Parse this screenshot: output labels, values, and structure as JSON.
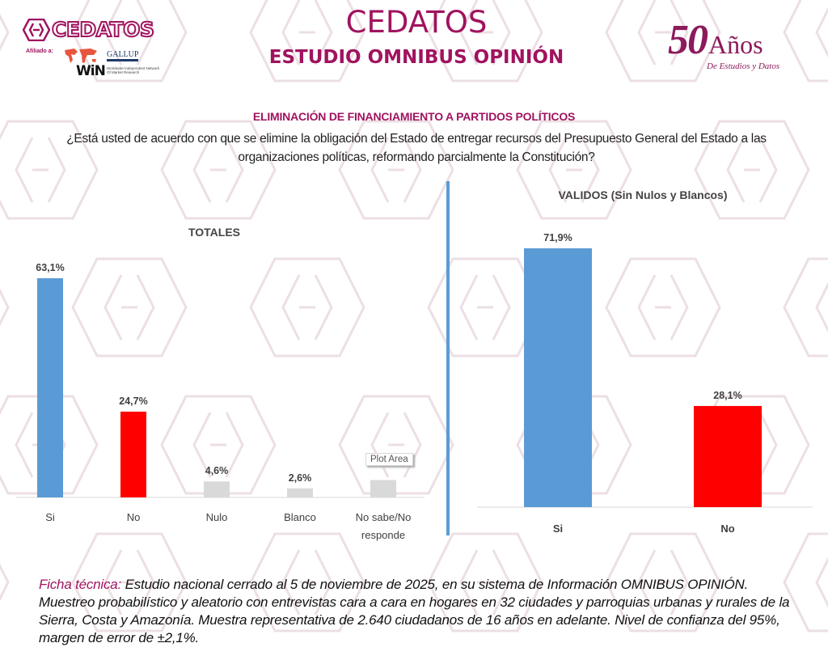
{
  "header": {
    "logo_text": "CEDATOS",
    "affiliated_label": "Afiliado a:",
    "gallup_text": "GALLUP",
    "win_text": "WiN",
    "win_subtext": "Worldwide Independent Network Of Market Research",
    "title": "CEDATOS",
    "subtitle": "ESTUDIO OMNIBUS OPINIÓN",
    "anniversary_number": "50",
    "anniversary_word": "Años",
    "anniversary_sub": "De Estudios y Datos"
  },
  "question": {
    "title": "ELIMINACIÓN DE FINANCIAMIENTO A PARTIDOS POLÍTICOS",
    "line1": "¿Está usted de acuerdo con que se elimine la obligación del Estado de entregar recursos del Presupuesto General del Estado a las",
    "line2": "organizaciones políticas, reformando parcialmente la Constitución?"
  },
  "colors": {
    "brand": "#a0135f",
    "si": "#5b9bd5",
    "no": "#ff0000",
    "other": "#d9d9d9"
  },
  "tooltip": "Plot Area",
  "chart_data": [
    {
      "type": "bar",
      "title": "TOTALES",
      "categories": [
        "Si",
        "No",
        "Nulo",
        "Blanco",
        "No sabe/No responde"
      ],
      "category_lines": [
        [
          "Si"
        ],
        [
          "No"
        ],
        [
          "Nulo"
        ],
        [
          "Blanco"
        ],
        [
          "No sabe/No",
          "responde"
        ]
      ],
      "values": [
        63.1,
        24.7,
        4.6,
        2.6,
        5.0
      ],
      "labels": [
        "63,1%",
        "24,7%",
        "4,6%",
        "2,6%",
        ""
      ],
      "bar_colors": [
        "#5b9bd5",
        "#ff0000",
        "#d9d9d9",
        "#d9d9d9",
        "#d9d9d9"
      ],
      "xlabel": "",
      "ylabel": "",
      "ylim": [
        0,
        63.1
      ],
      "grid": false,
      "legend": "none"
    },
    {
      "type": "bar",
      "title": "VALIDOS (Sin Nulos y Blancos)",
      "categories": [
        "Si",
        "No"
      ],
      "category_lines": [
        [
          "Si"
        ],
        [
          "No"
        ]
      ],
      "values": [
        71.9,
        28.1
      ],
      "labels": [
        "71,9%",
        "28,1%"
      ],
      "bar_colors": [
        "#5b9bd5",
        "#ff0000"
      ],
      "xlabel": "",
      "ylabel": "",
      "ylim": [
        0,
        71.9
      ],
      "grid": false,
      "legend": "none"
    }
  ],
  "footer": {
    "label": "Ficha técnica:",
    "text": " Estudio nacional cerrado al 5 de noviembre de 2025, en su sistema de Información OMNIBUS OPINIÓN. Muestreo probabilístico y aleatorio con entrevistas cara a cara en hogares en 32 ciudades y parroquias urbanas y rurales de la Sierra, Costa y Amazonía. Muestra representativa de 2.640 ciudadanos de 16 años en adelante. Nivel de confianza del 95%, margen de error de ±2,1%."
  }
}
